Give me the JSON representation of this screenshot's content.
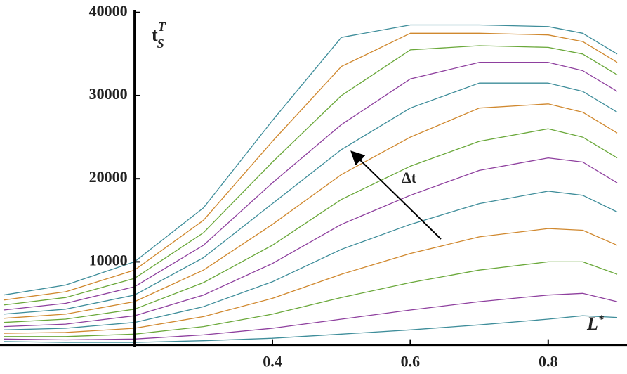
{
  "chart_data": {
    "type": "line",
    "y_label": {
      "main": "t",
      "sup": "T",
      "sub": "S"
    },
    "x_label": {
      "main": "L",
      "sup": "*"
    },
    "annotation": "Δt",
    "x": [
      0.01,
      0.1,
      0.2,
      0.3,
      0.4,
      0.5,
      0.6,
      0.7,
      0.8,
      0.85,
      0.9
    ],
    "xlim": [
      0.01,
      0.9
    ],
    "ylim": [
      -3500,
      41500
    ],
    "xticks": [
      0.4,
      0.6,
      0.8
    ],
    "yticks": [
      10000,
      20000,
      30000,
      40000
    ],
    "axis_origin_x": 0.2,
    "series": [
      {
        "color": "#3e8d9a",
        "values": [
          6000,
          7200,
          10000,
          16500,
          27000,
          37000,
          38500,
          38500,
          38300,
          37500,
          35000
        ]
      },
      {
        "color": "#d0882e",
        "values": [
          5400,
          6400,
          9000,
          15000,
          24500,
          33500,
          37500,
          37500,
          37300,
          36500,
          34000
        ]
      },
      {
        "color": "#6aa83a",
        "values": [
          4800,
          5700,
          8000,
          13500,
          22000,
          30000,
          35500,
          36000,
          35800,
          35000,
          32500
        ]
      },
      {
        "color": "#8e3f9e",
        "values": [
          4200,
          5000,
          7000,
          12000,
          19500,
          26500,
          32000,
          34000,
          34000,
          33000,
          30500
        ]
      },
      {
        "color": "#3e8d9a",
        "values": [
          3700,
          4300,
          6000,
          10500,
          17000,
          23500,
          28500,
          31500,
          31500,
          30500,
          28000
        ]
      },
      {
        "color": "#d0882e",
        "values": [
          3200,
          3700,
          5200,
          9000,
          14500,
          20500,
          25000,
          28500,
          29000,
          28000,
          25500
        ]
      },
      {
        "color": "#6aa83a",
        "values": [
          2700,
          3100,
          4300,
          7500,
          12000,
          17500,
          21500,
          24500,
          26000,
          25000,
          22500
        ]
      },
      {
        "color": "#8e3f9e",
        "values": [
          2200,
          2500,
          3500,
          6000,
          9800,
          14500,
          18000,
          21000,
          22500,
          22000,
          19500
        ]
      },
      {
        "color": "#3e8d9a",
        "values": [
          1800,
          2000,
          2700,
          4600,
          7600,
          11500,
          14500,
          17000,
          18500,
          18000,
          16000
        ]
      },
      {
        "color": "#d0882e",
        "values": [
          1400,
          1500,
          2000,
          3400,
          5600,
          8500,
          11000,
          13000,
          14000,
          13800,
          12000
        ]
      },
      {
        "color": "#6aa83a",
        "values": [
          1000,
          1000,
          1300,
          2200,
          3700,
          5700,
          7500,
          9000,
          10000,
          10000,
          8500
        ]
      },
      {
        "color": "#8e3f9e",
        "values": [
          700,
          600,
          700,
          1200,
          2000,
          3100,
          4200,
          5200,
          6000,
          6200,
          5200
        ]
      },
      {
        "color": "#3e8d9a",
        "values": [
          400,
          300,
          300,
          500,
          800,
          1300,
          1800,
          2400,
          3100,
          3500,
          3300
        ]
      }
    ]
  }
}
